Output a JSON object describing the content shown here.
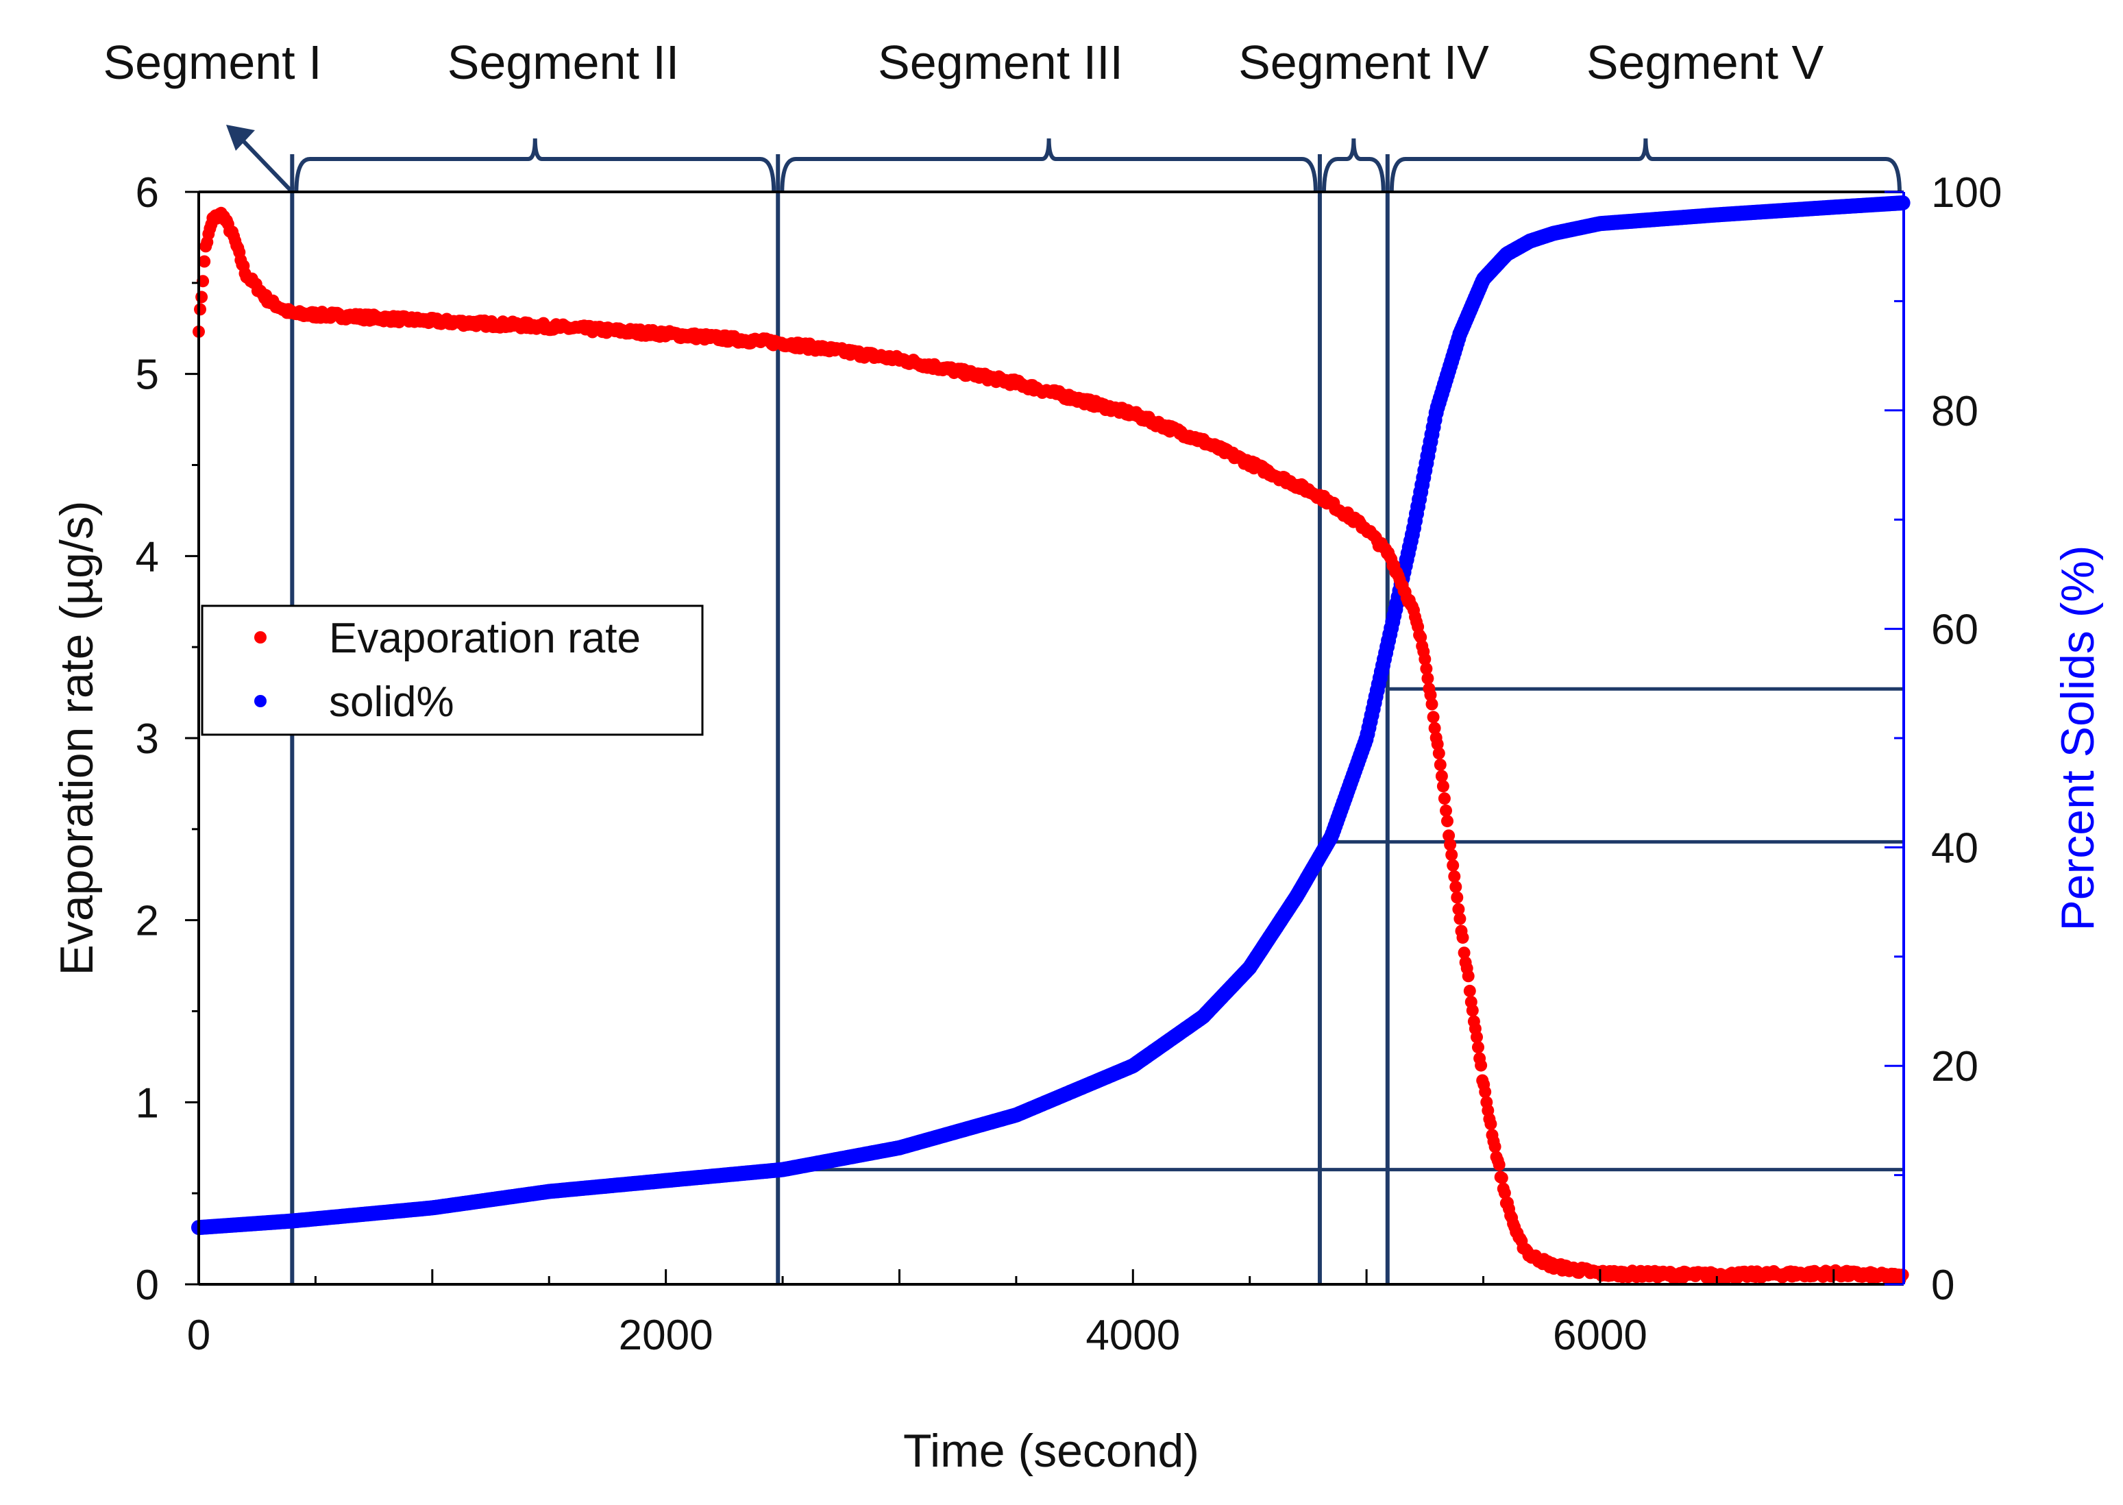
{
  "chart_data": {
    "type": "scatter",
    "title": "",
    "xlabel": "Time (second)",
    "ylabel_left": "Evaporation rate (µg/s)",
    "ylabel_right": "Percent Solids (%)",
    "xlim": [
      0,
      7300
    ],
    "ylim_left": [
      0,
      6
    ],
    "ylim_right": [
      0,
      100
    ],
    "x_ticks": [
      0,
      2000,
      4000,
      6000
    ],
    "y_left_ticks": [
      0,
      1,
      2,
      3,
      4,
      5,
      6
    ],
    "y_right_ticks": [
      0,
      20,
      40,
      60,
      80,
      100
    ],
    "series": [
      {
        "name": "Evaporation rate",
        "axis": "left",
        "color": "#ff0000",
        "x": [
          0,
          30,
          60,
          100,
          150,
          200,
          300,
          400,
          600,
          1000,
          1500,
          2000,
          2500,
          3000,
          3500,
          4000,
          4300,
          4600,
          4800,
          5000,
          5100,
          5200,
          5250,
          5300,
          5350,
          5400,
          5450,
          5500,
          5550,
          5600,
          5650,
          5700,
          5800,
          6000,
          6500,
          7000,
          7300
        ],
        "values": [
          5.25,
          5.7,
          5.85,
          5.88,
          5.75,
          5.55,
          5.4,
          5.33,
          5.32,
          5.29,
          5.26,
          5.22,
          5.17,
          5.08,
          4.95,
          4.78,
          4.63,
          4.45,
          4.33,
          4.15,
          4.0,
          3.7,
          3.45,
          3.0,
          2.5,
          2.0,
          1.55,
          1.1,
          0.75,
          0.45,
          0.25,
          0.16,
          0.1,
          0.06,
          0.05,
          0.06,
          0.04
        ]
      },
      {
        "name": "solid%",
        "axis": "right",
        "color": "#0000ff",
        "x": [
          0,
          400,
          1000,
          1500,
          2000,
          2500,
          3000,
          3500,
          4000,
          4300,
          4500,
          4700,
          4850,
          5000,
          5100,
          5200,
          5300,
          5400,
          5500,
          5600,
          5700,
          5800,
          6000,
          6500,
          7000,
          7300
        ],
        "values": [
          5.2,
          5.8,
          7,
          8.5,
          9.5,
          10.5,
          12.5,
          15.5,
          20,
          24.5,
          29,
          35.5,
          41,
          50,
          59.5,
          69,
          80,
          87,
          92,
          94.3,
          95.5,
          96.2,
          97.1,
          97.9,
          98.6,
          99.0
        ]
      }
    ],
    "segments": [
      {
        "label": "Segment I",
        "start": 0,
        "end": 400
      },
      {
        "label": "Segment II",
        "start": 400,
        "end": 2480
      },
      {
        "label": "Segment III",
        "start": 2480,
        "end": 4800
      },
      {
        "label": "Segment IV",
        "start": 4800,
        "end": 5090
      },
      {
        "label": "Segment V",
        "start": 5090,
        "end": 7300
      }
    ],
    "boundary_lines": [
      400,
      2480,
      4800,
      5090
    ],
    "threshold_lines_percent_solids": [
      10.5,
      40.5,
      54.5
    ],
    "legend": {
      "position": "middle-left",
      "entries": [
        "Evaporation rate",
        "solid%"
      ]
    }
  },
  "colors": {
    "evap": "#ff0000",
    "solid": "#0000ff",
    "annotation": "#1f3a68",
    "axis": "#000000",
    "right_axis": "#0000ff"
  }
}
